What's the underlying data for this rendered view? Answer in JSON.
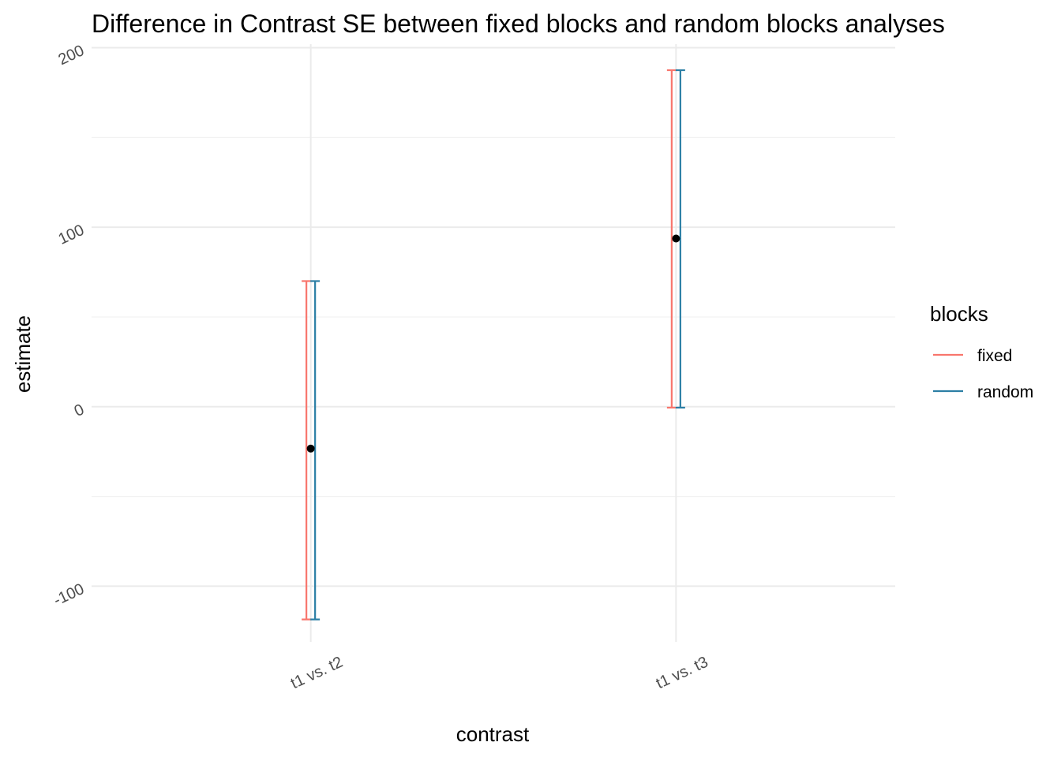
{
  "chart_data": {
    "type": "errorbar",
    "title": "Difference in Contrast SE between fixed blocks and random blocks analyses",
    "xlabel": "contrast",
    "ylabel": "estimate",
    "categories": [
      "t1 vs. t2",
      "t1 vs. t3"
    ],
    "ylim": [
      -131,
      202
    ],
    "yticks": [
      -100,
      0,
      100,
      200
    ],
    "ytick_labels": [
      "-100",
      "0",
      "100",
      "200"
    ],
    "minor_yticks": [
      -50,
      50,
      150
    ],
    "grid": true,
    "estimates": [
      -23.3,
      93.7
    ],
    "point_color": "#000000",
    "series": [
      {
        "name": "fixed",
        "color": "#F8766D",
        "lower": [
          -118.5,
          -0.5
        ],
        "upper": [
          70.0,
          187.5
        ]
      },
      {
        "name": "random",
        "color": "#2C7FA5",
        "lower": [
          -118.5,
          -0.5
        ],
        "upper": [
          70.0,
          187.5
        ]
      }
    ],
    "legend": {
      "title": "blocks",
      "position": "right"
    }
  }
}
